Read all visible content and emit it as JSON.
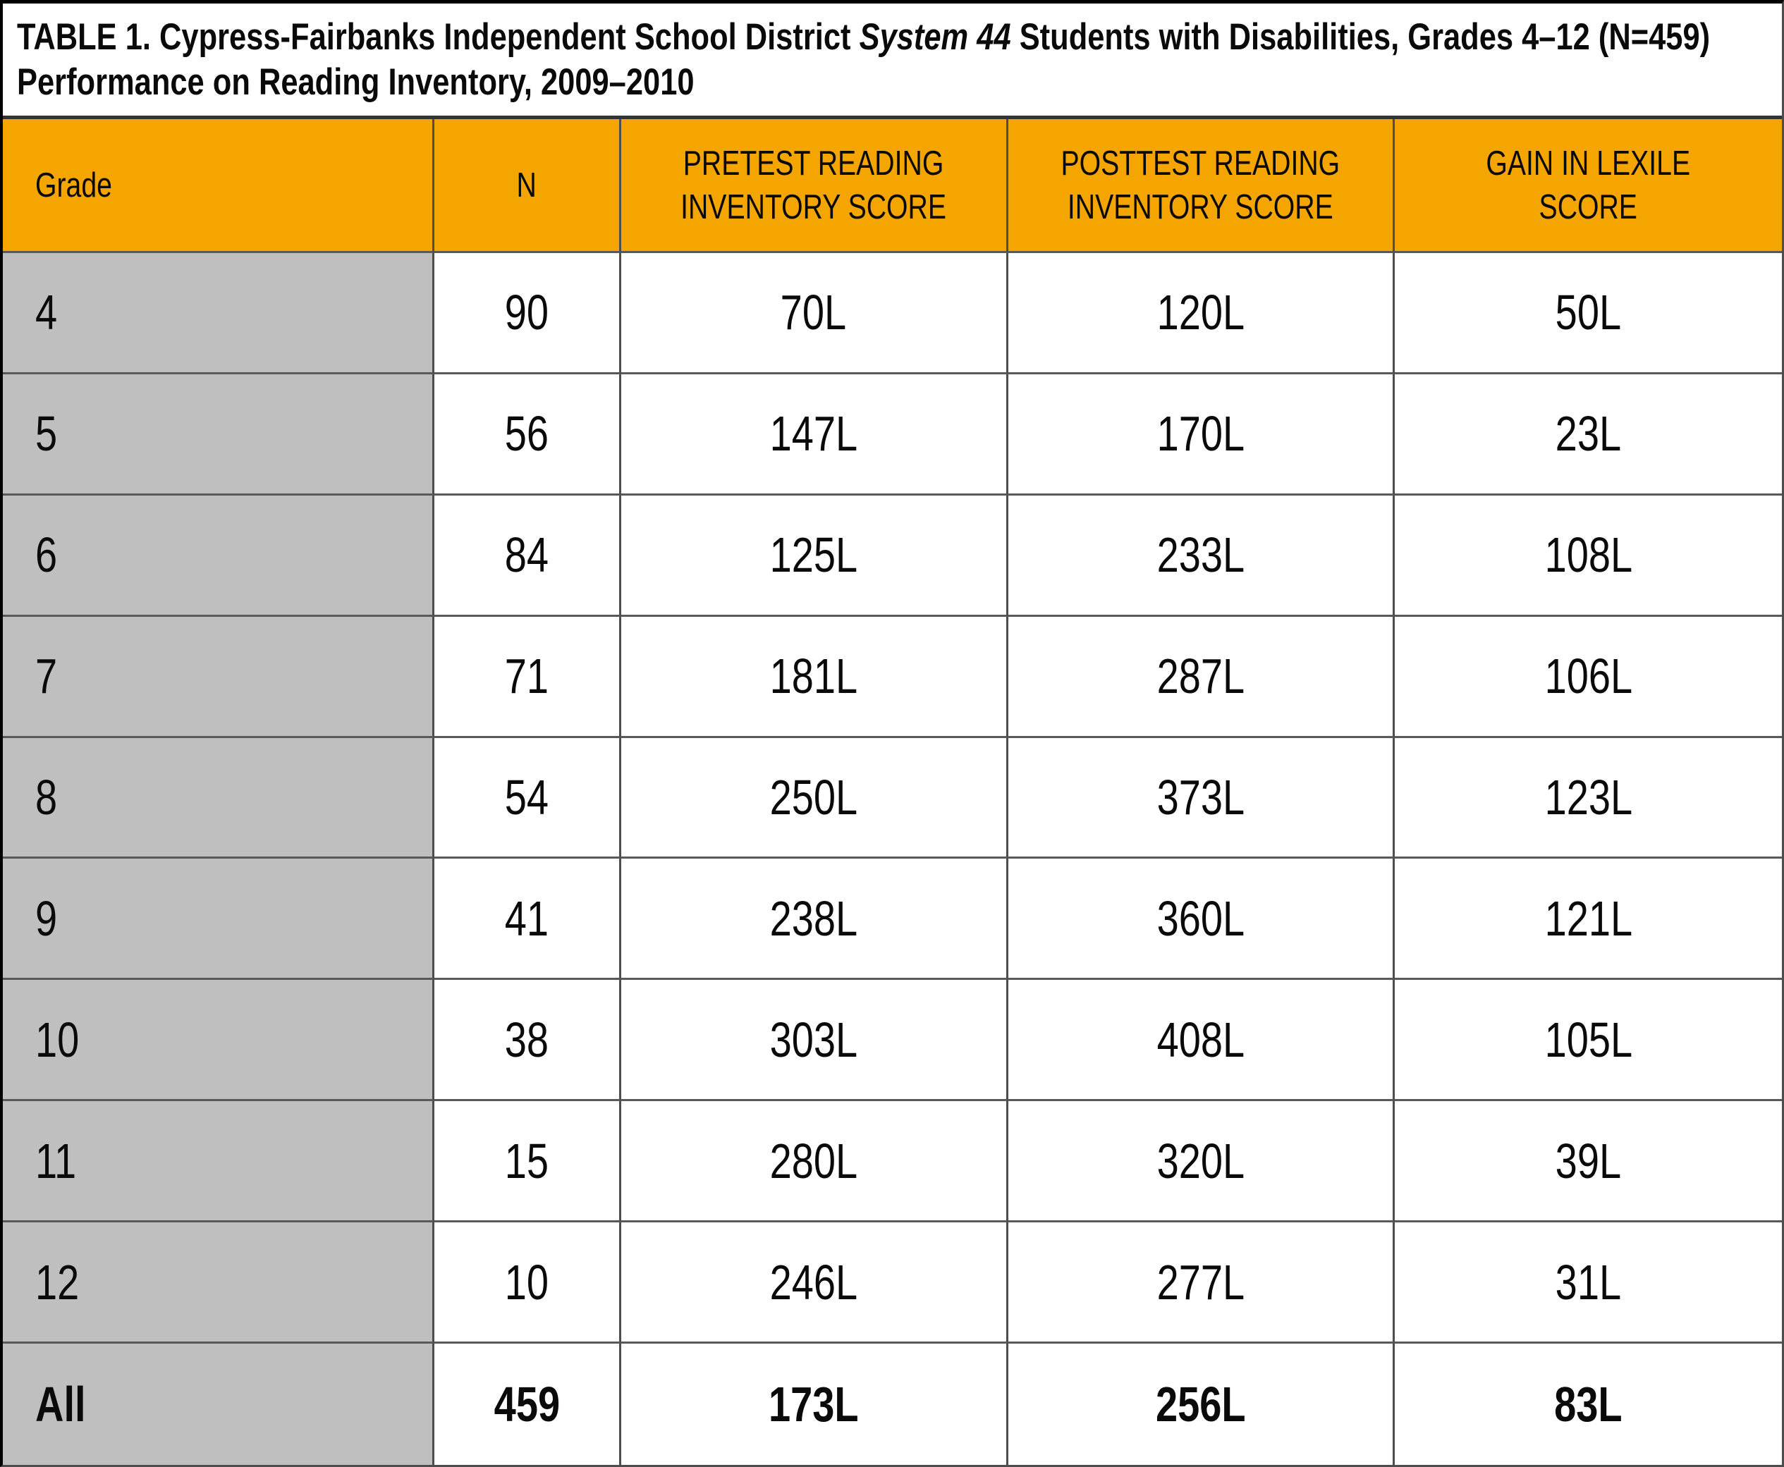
{
  "title": {
    "before_italic": "TABLE 1. Cypress-Fairbanks Independent School District ",
    "italic": "System 44",
    "after_italic": " Students with Disabilities, Grades 4–12 (N=459)",
    "line2": "Performance on Reading Inventory, 2009–2010"
  },
  "colors": {
    "header_bg": "#F5A500",
    "row_label_bg": "#BFBFBF",
    "grid_line": "#4D4D4D",
    "title_rule": "#333333"
  },
  "table": {
    "columns": [
      {
        "key": "grade",
        "label": "Grade"
      },
      {
        "key": "n",
        "label": "N"
      },
      {
        "key": "pretest",
        "label": "PRETEST READING\nINVENTORY SCORE"
      },
      {
        "key": "posttest",
        "label": "POSTTEST READING\nINVENTORY SCORE"
      },
      {
        "key": "gain",
        "label": "GAIN IN LEXILE SCORE"
      }
    ],
    "rows": [
      {
        "grade": "4",
        "n": "90",
        "pretest": "70L",
        "posttest": "120L",
        "gain": "50L"
      },
      {
        "grade": "5",
        "n": "56",
        "pretest": "147L",
        "posttest": "170L",
        "gain": "23L"
      },
      {
        "grade": "6",
        "n": "84",
        "pretest": "125L",
        "posttest": "233L",
        "gain": "108L"
      },
      {
        "grade": "7",
        "n": "71",
        "pretest": "181L",
        "posttest": "287L",
        "gain": "106L"
      },
      {
        "grade": "8",
        "n": "54",
        "pretest": "250L",
        "posttest": "373L",
        "gain": "123L"
      },
      {
        "grade": "9",
        "n": "41",
        "pretest": "238L",
        "posttest": "360L",
        "gain": "121L"
      },
      {
        "grade": "10",
        "n": "38",
        "pretest": "303L",
        "posttest": "408L",
        "gain": "105L"
      },
      {
        "grade": "11",
        "n": "15",
        "pretest": "280L",
        "posttest": "320L",
        "gain": "39L"
      },
      {
        "grade": "12",
        "n": "10",
        "pretest": "246L",
        "posttest": "277L",
        "gain": "31L"
      },
      {
        "grade": "All",
        "n": "459",
        "pretest": "173L",
        "posttest": "256L",
        "gain": "83L"
      }
    ]
  }
}
